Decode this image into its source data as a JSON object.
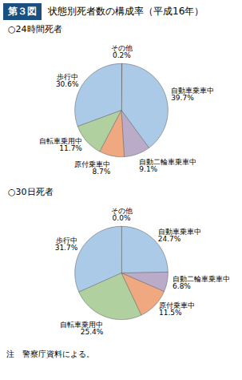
{
  "title": "第３図",
  "subtitle": "状態別死者数の構成率（平成16年）",
  "annotations": [
    "注　警察庁資料による。"
  ],
  "chart_data": [
    {
      "type": "pie",
      "title": "○24時間死者",
      "categories": [
        "その他",
        "自動車乗車中",
        "自動二輪車乗車中",
        "原付乗車中",
        "自転車乗用中",
        "歩行中"
      ],
      "values": [
        0.2,
        39.7,
        9.1,
        8.7,
        11.7,
        30.6
      ],
      "value_labels": [
        "0.2%",
        "39.7%",
        "9.1%",
        "8.7%",
        "11.7%",
        "30.6%"
      ],
      "colors": [
        "#c0b8d8",
        "#aacae8",
        "#baacc8",
        "#f0a880",
        "#b0d0a0",
        "#aacae8"
      ],
      "data_labels": true
    },
    {
      "type": "pie",
      "title": "○30日死者",
      "categories": [
        "その他",
        "自動車乗車中",
        "自動二輪車乗車中",
        "原付乗車中",
        "自転車乗用中",
        "歩行中"
      ],
      "values": [
        0.0,
        24.7,
        6.8,
        11.5,
        25.4,
        31.7
      ],
      "value_labels": [
        "0.0%",
        "24.7%",
        "6.8%",
        "11.5%",
        "25.4%",
        "31.7%"
      ],
      "colors": [
        "#c0b8d8",
        "#aacae8",
        "#baacc8",
        "#f0a880",
        "#b0d0a0",
        "#aacae8"
      ],
      "data_labels": true
    }
  ]
}
